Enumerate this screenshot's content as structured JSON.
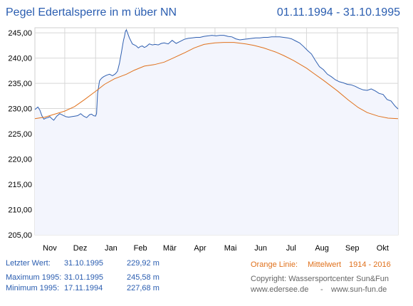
{
  "header": {
    "title": "Pegel Edertalsperre in m über NN",
    "date_range": "01.11.1994 - 31.10.1995"
  },
  "colors": {
    "title": "#2a5db0",
    "level_line": "#2f5fb0",
    "level_fill": "#f3f5fd",
    "mean_line": "#e0711c",
    "grid": "#d8d8d8",
    "orange_text": "#e0711c",
    "gray_text": "#666666"
  },
  "chart_data": {
    "type": "line",
    "title": "Pegel Edertalsperre in m über NN",
    "ylim": [
      205,
      246
    ],
    "yticks": [
      "205,00",
      "210,00",
      "215,00",
      "220,00",
      "225,00",
      "230,00",
      "235,00",
      "240,00",
      "245,00"
    ],
    "ytick_values": [
      205,
      210,
      215,
      220,
      225,
      230,
      235,
      240,
      245
    ],
    "xlim": [
      0,
      365
    ],
    "month_labels": [
      "Nov",
      "Dez",
      "Jan",
      "Feb",
      "Mär",
      "Apr",
      "Mai",
      "Jun",
      "Jul",
      "Aug",
      "Sep",
      "Okt"
    ],
    "month_boundaries": [
      30,
      61,
      92,
      120,
      151,
      181,
      212,
      242,
      273,
      304,
      334
    ],
    "grid": true,
    "series": [
      {
        "key": "level",
        "x": [
          0,
          3,
          5,
          7,
          9,
          11,
          13,
          15,
          17,
          19,
          22,
          25,
          28,
          31,
          34,
          37,
          40,
          43,
          46,
          49,
          52,
          55,
          57,
          59,
          61,
          62,
          63,
          65,
          67,
          69,
          72,
          75,
          78,
          81,
          83,
          85,
          87,
          89,
          90,
          91,
          92,
          95,
          98,
          100,
          102,
          104,
          106,
          108,
          110,
          112,
          115,
          118,
          121,
          124,
          127,
          130,
          134,
          138,
          142,
          146,
          150,
          154,
          158,
          162,
          166,
          170,
          174,
          178,
          182,
          186,
          190,
          194,
          198,
          202,
          206,
          210,
          214,
          218,
          222,
          226,
          230,
          234,
          238,
          242,
          246,
          250,
          254,
          258,
          262,
          266,
          270,
          274,
          278,
          282,
          286,
          290,
          294,
          298,
          302,
          306,
          310,
          314,
          318,
          322,
          326,
          330,
          334,
          338,
          342,
          346,
          350,
          354,
          358,
          362,
          365
        ],
        "values": [
          229.8,
          230.3,
          229.7,
          228.6,
          227.9,
          228.1,
          228.2,
          228.4,
          228.0,
          227.7,
          228.5,
          229.0,
          228.7,
          228.4,
          228.3,
          228.4,
          228.5,
          228.6,
          229.0,
          228.5,
          228.2,
          228.8,
          228.9,
          228.6,
          228.5,
          229.0,
          233.0,
          235.5,
          236.0,
          236.3,
          236.6,
          236.8,
          236.5,
          236.9,
          237.4,
          239.0,
          241.2,
          243.5,
          244.3,
          245.3,
          245.58,
          244.0,
          242.8,
          242.6,
          242.4,
          242.0,
          242.3,
          242.4,
          242.1,
          242.3,
          242.8,
          242.6,
          242.7,
          242.6,
          242.9,
          243.0,
          242.8,
          243.5,
          242.9,
          243.3,
          243.7,
          243.9,
          244.0,
          244.1,
          244.1,
          244.3,
          244.4,
          244.5,
          244.4,
          244.5,
          244.5,
          244.3,
          244.2,
          243.8,
          243.6,
          243.7,
          243.8,
          243.9,
          244.0,
          244.0,
          244.1,
          244.1,
          244.2,
          244.2,
          244.2,
          244.1,
          244.0,
          243.8,
          243.4,
          243.0,
          242.3,
          241.5,
          240.8,
          239.5,
          238.3,
          237.7,
          236.8,
          236.3,
          235.7,
          235.3,
          235.1,
          234.8,
          234.7,
          234.4,
          234.0,
          233.7,
          233.6,
          233.9,
          233.5,
          233.0,
          232.8,
          231.8,
          231.5,
          230.5,
          229.92
        ]
      },
      {
        "key": "mean",
        "x": [
          0,
          10,
          20,
          30,
          40,
          50,
          61,
          70,
          80,
          92,
          100,
          110,
          120,
          130,
          140,
          151,
          160,
          170,
          181,
          190,
          200,
          212,
          220,
          230,
          242,
          250,
          260,
          273,
          280,
          290,
          304,
          315,
          325,
          334,
          345,
          355,
          365
        ],
        "values": [
          228.0,
          228.3,
          228.9,
          229.5,
          230.4,
          231.8,
          233.4,
          234.8,
          235.9,
          236.8,
          237.6,
          238.4,
          238.7,
          239.2,
          240.1,
          241.1,
          242.0,
          242.7,
          243.0,
          243.1,
          243.1,
          242.8,
          242.5,
          242.0,
          241.2,
          240.5,
          239.5,
          238.0,
          237.0,
          235.6,
          233.5,
          231.7,
          230.2,
          229.2,
          228.5,
          228.1,
          228.0
        ]
      }
    ]
  },
  "stats": {
    "last": {
      "label": "Letzter Wert:",
      "date": "31.10.1995",
      "value": "229,92 m"
    },
    "max": {
      "label": "Maximum 1995:",
      "date": "31.01.1995",
      "value": "245,58 m"
    },
    "min": {
      "label": "Minimum 1995:",
      "date": "17.11.1994",
      "value": "227,68 m"
    }
  },
  "legend": {
    "orange_line": "Orange Linie:",
    "mean_label": "Mittelwert",
    "mean_years": "1914 - 2016"
  },
  "footer": {
    "copyright": "Copyright: Wassersportcenter Sun&Fun",
    "site1": "www.edersee.de",
    "separator": "-",
    "site2": "www.sun-fun.de"
  }
}
